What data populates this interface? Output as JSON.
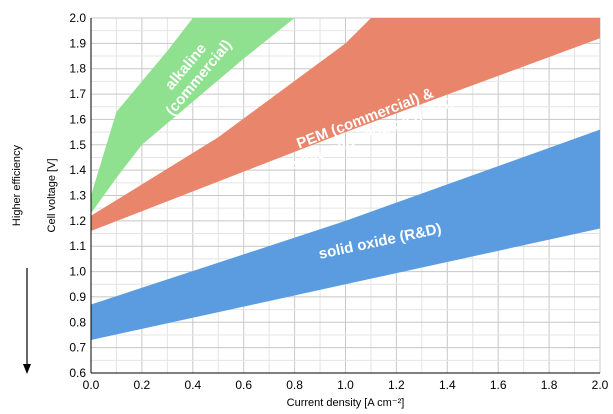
{
  "chart_data": {
    "type": "area",
    "xlabel": "Current density [A cm⁻²]",
    "ylabel": "Cell voltage [V]",
    "side_label": "Higher efficiency",
    "xlim": [
      0.0,
      2.0
    ],
    "ylim": [
      0.6,
      2.0
    ],
    "x_ticks": [
      "0.0",
      "0.2",
      "0.4",
      "0.6",
      "0.8",
      "1.0",
      "1.2",
      "1.4",
      "1.6",
      "1.8",
      "2.0"
    ],
    "y_ticks": [
      "0.6",
      "0.7",
      "0.8",
      "0.9",
      "1.0",
      "1.1",
      "1.2",
      "1.3",
      "1.4",
      "1.5",
      "1.6",
      "1.7",
      "1.8",
      "1.9",
      "2.0"
    ],
    "grid": true,
    "series": [
      {
        "name": "alkaline\n(commercial)",
        "color": "#8fe08f",
        "upper": [
          [
            0.0,
            1.3
          ],
          [
            0.1,
            1.63
          ],
          [
            0.2,
            1.75
          ],
          [
            0.3,
            1.87
          ],
          [
            0.4,
            2.0
          ],
          [
            0.8,
            2.0
          ]
        ],
        "lower": [
          [
            0.0,
            1.23
          ],
          [
            0.1,
            1.37
          ],
          [
            0.2,
            1.5
          ],
          [
            0.4,
            1.67
          ],
          [
            0.6,
            1.84
          ],
          [
            0.8,
            2.0
          ]
        ]
      },
      {
        "name": "PEM (commercial) &\nadvanced alkaline (R&D)",
        "color": "#e8856b",
        "upper": [
          [
            0.0,
            1.22
          ],
          [
            0.5,
            1.53
          ],
          [
            1.0,
            1.9
          ],
          [
            1.1,
            2.0
          ],
          [
            2.0,
            2.0
          ]
        ],
        "lower": [
          [
            0.0,
            1.16
          ],
          [
            1.0,
            1.55
          ],
          [
            2.0,
            1.92
          ]
        ]
      },
      {
        "name": "solid oxide (R&D)",
        "color": "#5b9ce0",
        "upper": [
          [
            0.0,
            0.87
          ],
          [
            1.0,
            1.2
          ],
          [
            2.0,
            1.56
          ]
        ],
        "lower": [
          [
            0.0,
            0.73
          ],
          [
            1.0,
            0.95
          ],
          [
            2.0,
            1.17
          ]
        ]
      }
    ]
  }
}
